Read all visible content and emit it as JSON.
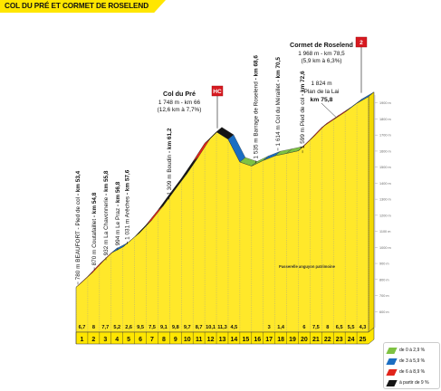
{
  "title": "COL DU PRÉ ET CORMET DE ROSELEND",
  "colors": {
    "fill": "#ffe82a",
    "side": "#f2d800",
    "base": "#f3e36a",
    "axis_band": "#ffe600",
    "grid": "#999999",
    "green": "#7ec242",
    "blue": "#1b6ec2",
    "red": "#e1251b",
    "black": "#151515",
    "category_hc": "#d71920"
  },
  "chart_data": {
    "type": "area",
    "xlabel": "",
    "ylabel": "",
    "xlim": [
      0,
      25
    ],
    "ylim": [
      500,
      2000
    ],
    "x_ticks": [
      "1",
      "2",
      "3",
      "4",
      "5",
      "6",
      "7",
      "8",
      "9",
      "10",
      "11",
      "12",
      "13",
      "14",
      "15",
      "16",
      "17",
      "18",
      "19",
      "20",
      "21",
      "22",
      "23",
      "24",
      "25"
    ],
    "y_ticks": [
      "600 m",
      "700 m",
      "800 m",
      "900 m",
      "1000 m",
      "1100 m",
      "1200 m",
      "1300 m",
      "1400 m",
      "1500 m",
      "1600 m",
      "1700 m",
      "1800 m",
      "1900 m"
    ],
    "y_tick_values": [
      600,
      700,
      800,
      900,
      1000,
      1100,
      1200,
      1300,
      1400,
      1500,
      1600,
      1700,
      1800,
      1900
    ],
    "km_points": [
      0,
      1,
      2,
      3,
      4,
      5,
      6,
      7,
      8,
      9,
      10,
      11,
      12,
      13,
      14,
      15,
      16,
      17,
      18,
      19,
      20,
      21,
      22,
      23,
      24,
      25
    ],
    "altitudes": [
      780,
      847,
      924,
      993,
      1031,
      1093,
      1169,
      1260,
      1360,
      1457,
      1564,
      1677,
      1748,
      1702,
      1560,
      1535,
      1570,
      1599,
      1614,
      1630,
      1700,
      1775,
      1824,
      1872,
      1926,
      1968
    ],
    "gradients": [
      "6,7",
      "8",
      "7,7",
      "5,2",
      "2,6",
      "9,5",
      "7,5",
      "9,1",
      "9,8",
      "9,7",
      "8,7",
      "10,1",
      "11,3",
      "4,5",
      "",
      "",
      "3",
      "1,4",
      "",
      "6",
      "7,5",
      "8",
      "6,5",
      "5,5",
      "4,3"
    ],
    "legend": [
      {
        "label": "de 0 à 2,9 %",
        "color": "green"
      },
      {
        "label": "de 3 à 5,9 %",
        "color": "blue"
      },
      {
        "label": "de 6 à 8,9 %",
        "color": "red"
      },
      {
        "label": "à partir de 9 %",
        "color": "black"
      }
    ],
    "annotations": [
      {
        "text": "780 m BEAUFORT - Pied de col - km 53,4",
        "km": 0,
        "alt": 780
      },
      {
        "text": "870 m Coutafaillet - km 54,8",
        "km": 1.4,
        "alt": 870
      },
      {
        "text": "932 m La Chavonnerie - km 55,8",
        "km": 2.4,
        "alt": 932
      },
      {
        "text": "994 m Le Praz - km 56,8",
        "km": 3.4,
        "alt": 994
      },
      {
        "text": "1 031 m Arêches - km 57,6",
        "km": 4.2,
        "alt": 1031
      },
      {
        "text": "1 309 m Boudin - km 61,2",
        "km": 7.8,
        "alt": 1309
      },
      {
        "text": "1 535 m Barrage de Roselend - km 68,6",
        "km": 15.2,
        "alt": 1535
      },
      {
        "text": "1 614 m Col du Méraillet - km 70,5",
        "km": 17.1,
        "alt": 1614
      },
      {
        "text": "1 599 m Pied de col - km 72,6",
        "km": 19.2,
        "alt": 1599
      }
    ],
    "summits": [
      {
        "name": "Col du Pré",
        "line1": "1 748 m - km 66",
        "line2": "(12,6 km à 7,7%)",
        "category": "HC",
        "km": 12.6,
        "alt": 1748
      },
      {
        "name": "Cormet de Roselend",
        "line1": "1 968 m - km 78,5",
        "line2": "(5,9 km à 6,3%)",
        "category": "2",
        "km": 25,
        "alt": 1968
      }
    ],
    "points": [
      {
        "line1": "1 824 m",
        "line2": "Plan de la Lai",
        "km_label": "km 75,8",
        "km": 22.2,
        "alt": 1824
      }
    ],
    "road_note": "Passerelle anguyon patrimoine"
  }
}
